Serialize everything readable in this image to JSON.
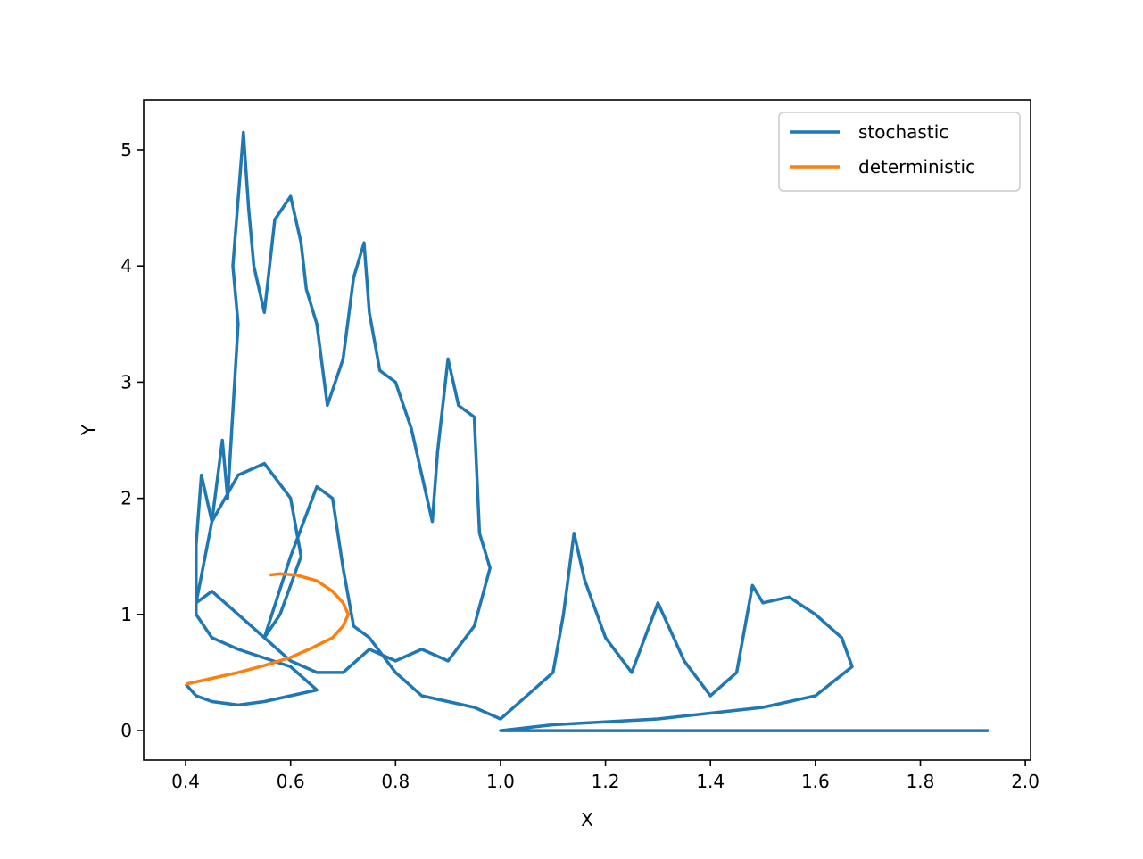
{
  "chart_data": {
    "type": "line",
    "x_label": "X",
    "y_label": "Y",
    "xlim": [
      0.32,
      2.01
    ],
    "ylim": [
      -0.253,
      5.43
    ],
    "xticks": [
      0.4,
      0.6,
      0.8,
      {
        "value": 1.0,
        "label": "1.0"
      },
      1.2,
      1.4,
      1.6,
      1.8,
      {
        "value": 2.0,
        "label": "2.0"
      }
    ],
    "yticks": [
      0,
      1,
      2,
      3,
      4,
      5
    ],
    "legend": "upper right",
    "series": [
      {
        "name": "stochastic",
        "color": "#1f77b4",
        "x": [
          0.4,
          0.42,
          0.45,
          0.5,
          0.55,
          0.6,
          0.65,
          0.6,
          0.5,
          0.45,
          0.42,
          0.42,
          0.43,
          0.45,
          0.47,
          0.48,
          0.5,
          0.49,
          0.51,
          0.52,
          0.53,
          0.55,
          0.57,
          0.6,
          0.62,
          0.63,
          0.65,
          0.67,
          0.7,
          0.72,
          0.74,
          0.75,
          0.77,
          0.8,
          0.83,
          0.86,
          0.87,
          0.88,
          0.9,
          0.92,
          0.95,
          0.96,
          0.98,
          0.95,
          0.9,
          0.85,
          0.8,
          0.75,
          0.7,
          0.65,
          0.6,
          0.55,
          0.5,
          0.45,
          0.42,
          0.45,
          0.5,
          0.55,
          0.6,
          0.62,
          0.58,
          0.55,
          0.6,
          0.65,
          0.68,
          0.7,
          0.72,
          0.75,
          0.8,
          0.85,
          0.9,
          0.95,
          1.0,
          1.05,
          1.1,
          1.12,
          1.14,
          1.16,
          1.2,
          1.25,
          1.3,
          1.35,
          1.4,
          1.45,
          1.48,
          1.5,
          1.55,
          1.6,
          1.65,
          1.67,
          1.6,
          1.5,
          1.3,
          1.1,
          1.0,
          1.3,
          1.6,
          1.93
        ],
        "values": [
          0.4,
          0.3,
          0.25,
          0.22,
          0.25,
          0.3,
          0.35,
          0.55,
          0.7,
          0.8,
          1.0,
          1.6,
          2.2,
          1.8,
          2.5,
          2.0,
          3.5,
          4.0,
          5.15,
          4.5,
          4.0,
          3.6,
          4.4,
          4.6,
          4.2,
          3.8,
          3.5,
          2.8,
          3.2,
          3.9,
          4.2,
          3.6,
          3.1,
          3.0,
          2.6,
          2.0,
          1.8,
          2.4,
          3.2,
          2.8,
          2.7,
          1.7,
          1.4,
          0.9,
          0.6,
          0.7,
          0.6,
          0.7,
          0.5,
          0.5,
          0.6,
          0.8,
          1.0,
          1.2,
          1.1,
          1.8,
          2.2,
          2.3,
          2.0,
          1.5,
          1.0,
          0.8,
          1.5,
          2.1,
          2.0,
          1.4,
          0.9,
          0.8,
          0.5,
          0.3,
          0.25,
          0.2,
          0.1,
          0.3,
          0.5,
          1.0,
          1.7,
          1.3,
          0.8,
          0.5,
          1.1,
          0.6,
          0.3,
          0.5,
          1.25,
          1.1,
          1.15,
          1.0,
          0.8,
          0.55,
          0.3,
          0.2,
          0.1,
          0.05,
          0.0,
          0.0,
          0.0,
          0.0
        ]
      },
      {
        "name": "deterministic",
        "color": "#ff7f0e",
        "x": [
          0.4,
          0.45,
          0.5,
          0.55,
          0.6,
          0.64,
          0.68,
          0.7,
          0.71,
          0.7,
          0.68,
          0.65,
          0.61,
          0.58,
          0.56
        ],
        "values": [
          0.4,
          0.45,
          0.5,
          0.56,
          0.63,
          0.71,
          0.8,
          0.9,
          1.0,
          1.1,
          1.2,
          1.29,
          1.34,
          1.35,
          1.34
        ]
      }
    ]
  }
}
